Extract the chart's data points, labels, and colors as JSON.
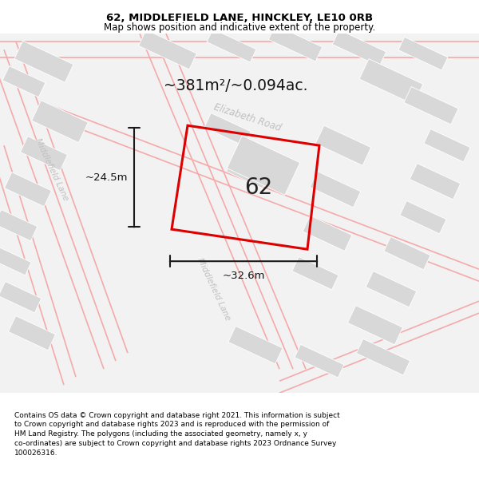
{
  "title_line1": "62, MIDDLEFIELD LANE, HINCKLEY, LE10 0RB",
  "title_line2": "Map shows position and indicative extent of the property.",
  "footer_text": "Contains OS data © Crown copyright and database right 2021. This information is subject\nto Crown copyright and database rights 2023 and is reproduced with the permission of\nHM Land Registry. The polygons (including the associated geometry, namely x, y\nco-ordinates) are subject to Crown copyright and database rights 2023 Ordnance Survey\n100026316.",
  "area_text": "~381m²/~0.094ac.",
  "number_label": "62",
  "width_label": "~32.6m",
  "height_label": "~24.5m",
  "road_label_elizabeth": "Elizabeth Road",
  "road_label_middlefield_top": "Middlefield Lane",
  "road_label_middlefield_bot": "Middlefield Lane",
  "bg_color": "#ffffff",
  "map_bg": "#f2f2f2",
  "building_color": "#d8d8d8",
  "road_line_color": "#f4aaaa",
  "property_color": "#dd0000",
  "dim_line_color": "#1a1a1a",
  "street_label_color": "#c0c0c0",
  "title_color": "#000000",
  "footer_color": "#000000"
}
